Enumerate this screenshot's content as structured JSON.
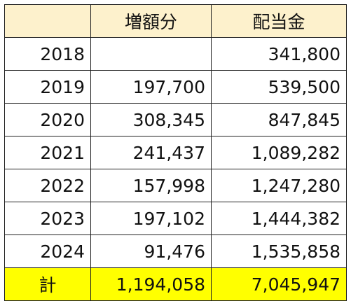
{
  "table": {
    "headers": [
      "",
      "増額分",
      "配当金"
    ],
    "rows": [
      {
        "year": "2018",
        "increase": "",
        "dividend": "341,800"
      },
      {
        "year": "2019",
        "increase": "197,700",
        "dividend": "539,500"
      },
      {
        "year": "2020",
        "increase": "308,345",
        "dividend": "847,845"
      },
      {
        "year": "2021",
        "increase": "241,437",
        "dividend": "1,089,282"
      },
      {
        "year": "2022",
        "increase": "157,998",
        "dividend": "1,247,280"
      },
      {
        "year": "2023",
        "increase": "197,102",
        "dividend": "1,444,382"
      },
      {
        "year": "2024",
        "increase": "91,476",
        "dividend": "1,535,858"
      }
    ],
    "total": {
      "label": "計",
      "increase": "1,194,058",
      "dividend": "7,045,947"
    }
  },
  "colors": {
    "header_fill": "#fdf1cc",
    "total_fill": "#ffff00",
    "border": "#222222"
  }
}
